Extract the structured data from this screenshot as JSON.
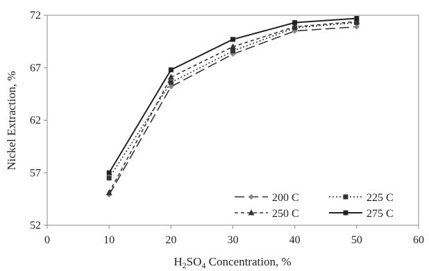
{
  "chart_data": {
    "type": "line",
    "xlabel": {
      "pre": "H",
      "sub1": "2",
      "mid": "SO",
      "sub2": "4",
      "post": " Concentration, %"
    },
    "ylabel": "Nickel Extraction, %",
    "xlim": [
      0,
      60
    ],
    "ylim": [
      52,
      72
    ],
    "xticks": [
      0,
      10,
      20,
      30,
      40,
      50,
      60
    ],
    "yticks": [
      52,
      57,
      62,
      67,
      72
    ],
    "x": [
      10,
      20,
      30,
      40,
      50
    ],
    "grid": false,
    "legend_position": "bottom-right",
    "series": [
      {
        "name": "200 C",
        "marker": "diamond",
        "dash": "long-dash",
        "color": "#333333",
        "values": [
          54.9,
          65.2,
          68.3,
          70.5,
          70.9
        ]
      },
      {
        "name": "225 C",
        "marker": "square",
        "dash": "dotted",
        "color": "#333333",
        "values": [
          56.5,
          65.6,
          68.6,
          70.8,
          71.3
        ]
      },
      {
        "name": "250 C",
        "marker": "triangle",
        "dash": "short-dash",
        "color": "#333333",
        "values": [
          55.1,
          66.1,
          69.0,
          70.9,
          71.4
        ]
      },
      {
        "name": "275 C",
        "marker": "square",
        "dash": "solid",
        "color": "#222222",
        "values": [
          57.0,
          66.8,
          69.7,
          71.3,
          71.7
        ]
      }
    ]
  }
}
